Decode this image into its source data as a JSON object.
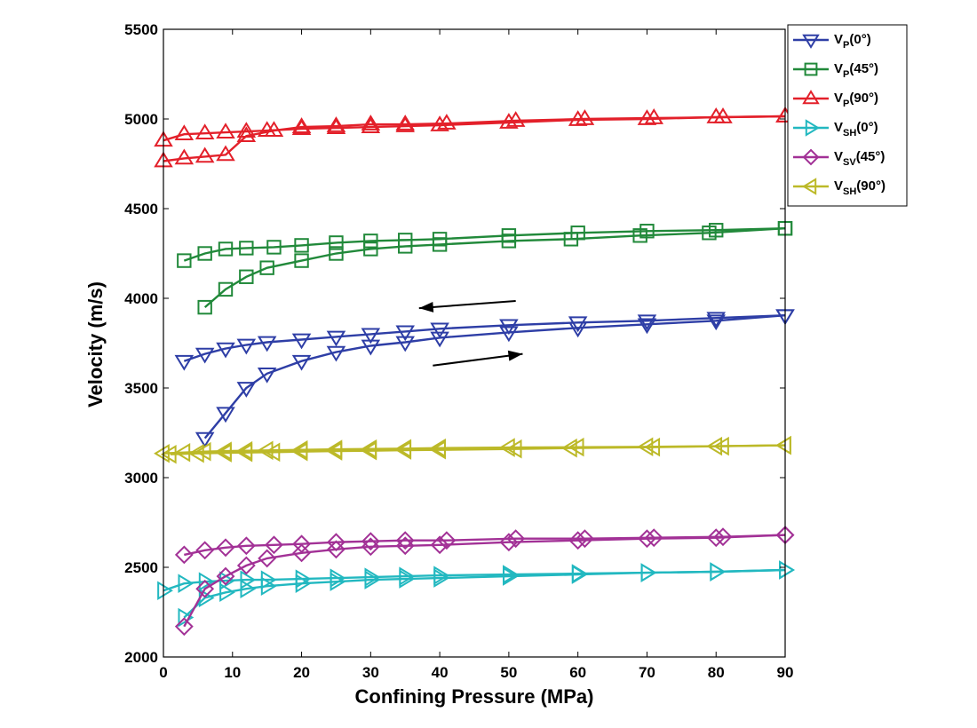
{
  "chart_data": {
    "type": "line",
    "title": "",
    "xlabel": "Confining Pressure (MPa)",
    "ylabel": "Velocity (m/s)",
    "xlim": [
      0,
      90
    ],
    "ylim": [
      2000,
      5500
    ],
    "xticks": [
      0,
      10,
      20,
      30,
      40,
      50,
      60,
      70,
      80,
      90
    ],
    "yticks": [
      2000,
      2500,
      3000,
      3500,
      4000,
      4500,
      5000,
      5500
    ],
    "grid": false,
    "legend_position": "top-right",
    "annotations": [
      {
        "type": "arrow",
        "direction": "left",
        "from": [
          51,
          3985
        ],
        "to": [
          37,
          3945
        ],
        "meaning": "unloading"
      },
      {
        "type": "arrow",
        "direction": "right",
        "from": [
          39,
          3625
        ],
        "to": [
          52,
          3690
        ],
        "meaning": "loading"
      }
    ],
    "series": [
      {
        "name": "V_P(0°)",
        "label_main": "V",
        "label_sub": "P",
        "label_rest": "(0°)",
        "color": "#2e3ea6",
        "marker": "triangle-down",
        "loading": {
          "x": [
            3,
            6,
            9,
            12,
            15,
            20,
            25,
            30,
            35,
            40,
            50,
            60,
            70,
            80,
            90
          ],
          "y": [
            3650,
            3690,
            3720,
            3740,
            3755,
            3770,
            3785,
            3800,
            3815,
            3830,
            3850,
            3865,
            3875,
            3890,
            3905
          ]
        },
        "unloading": {
          "x": [
            6,
            9,
            12,
            15,
            20,
            25,
            30,
            35,
            40,
            50,
            60,
            70,
            80,
            90
          ],
          "y": [
            3220,
            3360,
            3500,
            3580,
            3650,
            3700,
            3735,
            3755,
            3780,
            3810,
            3835,
            3855,
            3875,
            3905
          ]
        }
      },
      {
        "name": "V_P(45°)",
        "label_main": "V",
        "label_sub": "P",
        "label_rest": "(45°)",
        "color": "#21893a",
        "marker": "square",
        "loading": {
          "x": [
            3,
            6,
            9,
            12,
            16,
            20,
            25,
            30,
            35,
            40,
            50,
            60,
            70,
            80,
            90
          ],
          "y": [
            4210,
            4250,
            4275,
            4280,
            4285,
            4295,
            4310,
            4320,
            4325,
            4330,
            4350,
            4365,
            4375,
            4380,
            4390
          ]
        },
        "unloading": {
          "x": [
            6,
            9,
            12,
            15,
            20,
            25,
            30,
            35,
            40,
            50,
            59,
            69,
            79,
            90
          ],
          "y": [
            3950,
            4050,
            4120,
            4170,
            4210,
            4250,
            4275,
            4290,
            4300,
            4320,
            4330,
            4350,
            4365,
            4390
          ]
        }
      },
      {
        "name": "V_P(90°)",
        "label_main": "V",
        "label_sub": "P",
        "label_rest": "(90°)",
        "color": "#e3202a",
        "marker": "triangle-up",
        "loading": {
          "x": [
            0,
            3,
            6,
            9,
            12,
            15,
            20,
            25,
            30,
            35,
            40,
            50,
            60,
            70,
            80,
            90
          ],
          "y": [
            4880,
            4915,
            4920,
            4925,
            4930,
            4935,
            4945,
            4950,
            4955,
            4960,
            4965,
            4980,
            4995,
            5000,
            5010,
            5015
          ]
        },
        "unloading": {
          "x": [
            0,
            3,
            6,
            9,
            12,
            16,
            20,
            25,
            30,
            35,
            41,
            51,
            61,
            71,
            81,
            90
          ],
          "y": [
            4765,
            4780,
            4790,
            4800,
            4905,
            4935,
            4955,
            4960,
            4970,
            4970,
            4975,
            4990,
            5000,
            5005,
            5010,
            5015
          ]
        }
      },
      {
        "name": "V_SH(0°)",
        "label_main": "V",
        "label_sub": "SH",
        "label_rest": "(0°)",
        "color": "#22b8c0",
        "marker": "triangle-right",
        "loading": {
          "x": [
            0,
            3,
            6,
            9,
            12,
            15,
            20,
            25,
            30,
            35,
            40,
            50,
            60,
            70,
            80,
            90
          ],
          "y": [
            2370,
            2410,
            2420,
            2425,
            2430,
            2430,
            2435,
            2440,
            2445,
            2450,
            2455,
            2460,
            2465,
            2470,
            2475,
            2485
          ]
        },
        "unloading": {
          "x": [
            3,
            6,
            9,
            12,
            15,
            20,
            25,
            30,
            35,
            40,
            50,
            60,
            70,
            80,
            90
          ],
          "y": [
            2220,
            2330,
            2360,
            2380,
            2395,
            2410,
            2420,
            2430,
            2435,
            2440,
            2450,
            2460,
            2470,
            2475,
            2485
          ]
        }
      },
      {
        "name": "V_SV(45°)",
        "label_main": "V",
        "label_sub": "SV",
        "label_rest": "(45°)",
        "color": "#a23196",
        "marker": "diamond",
        "loading": {
          "x": [
            3,
            6,
            9,
            12,
            16,
            20,
            25,
            30,
            35,
            41,
            51,
            61,
            71,
            81,
            90
          ],
          "y": [
            2570,
            2595,
            2610,
            2620,
            2625,
            2630,
            2640,
            2645,
            2650,
            2650,
            2660,
            2660,
            2665,
            2670,
            2680
          ]
        },
        "unloading": {
          "x": [
            3,
            6,
            9,
            12,
            15,
            20,
            25,
            30,
            35,
            40,
            50,
            60,
            70,
            80,
            90
          ],
          "y": [
            2170,
            2380,
            2450,
            2510,
            2550,
            2580,
            2600,
            2615,
            2620,
            2625,
            2640,
            2650,
            2660,
            2665,
            2680
          ]
        }
      },
      {
        "name": "V_SH(90°)",
        "label_main": "V",
        "label_sub": "SH",
        "label_rest": "(90°)",
        "color": "#bcb928",
        "marker": "triangle-left",
        "loading": {
          "x": [
            0,
            3,
            6,
            9,
            12,
            15,
            20,
            25,
            30,
            35,
            40,
            50,
            60,
            70,
            80,
            90
          ],
          "y": [
            3135,
            3140,
            3145,
            3148,
            3150,
            3152,
            3155,
            3158,
            3160,
            3162,
            3165,
            3168,
            3170,
            3172,
            3175,
            3180
          ]
        },
        "unloading": {
          "x": [
            1,
            5,
            9,
            12,
            16,
            20,
            25,
            30,
            35,
            40,
            51,
            59,
            71,
            81,
            90
          ],
          "y": [
            3130,
            3135,
            3138,
            3140,
            3142,
            3145,
            3148,
            3150,
            3153,
            3155,
            3160,
            3165,
            3170,
            3175,
            3180
          ]
        }
      }
    ]
  }
}
